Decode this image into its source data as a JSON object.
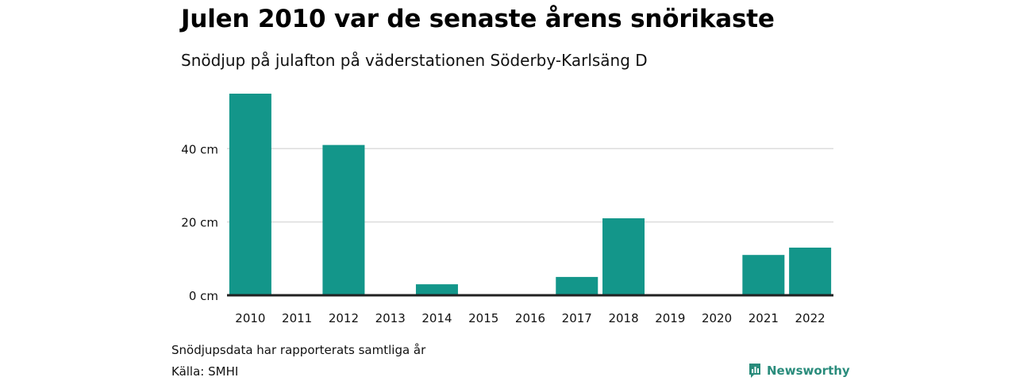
{
  "header": {
    "title": "Julen 2010 var de senaste årens snörikaste",
    "subtitle": "Snödjup på julafton på väderstationen Söderby-Karlsäng D"
  },
  "footer": {
    "note": "Snödjupsdata har rapporterats samtliga år",
    "source": "Källa: SMHI",
    "brand": "Newsworthy",
    "brand_icon": "newsworthy-logo-icon"
  },
  "chart_data": {
    "type": "bar",
    "title": "Julen 2010 var de senaste årens snörikaste",
    "subtitle": "Snödjup på julafton på väderstationen Söderby-Karlsäng D",
    "categories": [
      "2010",
      "2011",
      "2012",
      "2013",
      "2014",
      "2015",
      "2016",
      "2017",
      "2018",
      "2019",
      "2020",
      "2021",
      "2022"
    ],
    "values": [
      55,
      0,
      41,
      0,
      3,
      0,
      0,
      5,
      21,
      0,
      0,
      11,
      13
    ],
    "ylim": [
      0,
      55
    ],
    "yticks": [
      0,
      20,
      40
    ],
    "ytick_labels": [
      "0 cm",
      "20 cm",
      "40 cm"
    ],
    "grid": true,
    "bar_color": "#13968a",
    "baseline_color": "#222222",
    "grid_color": "#dddddd"
  }
}
